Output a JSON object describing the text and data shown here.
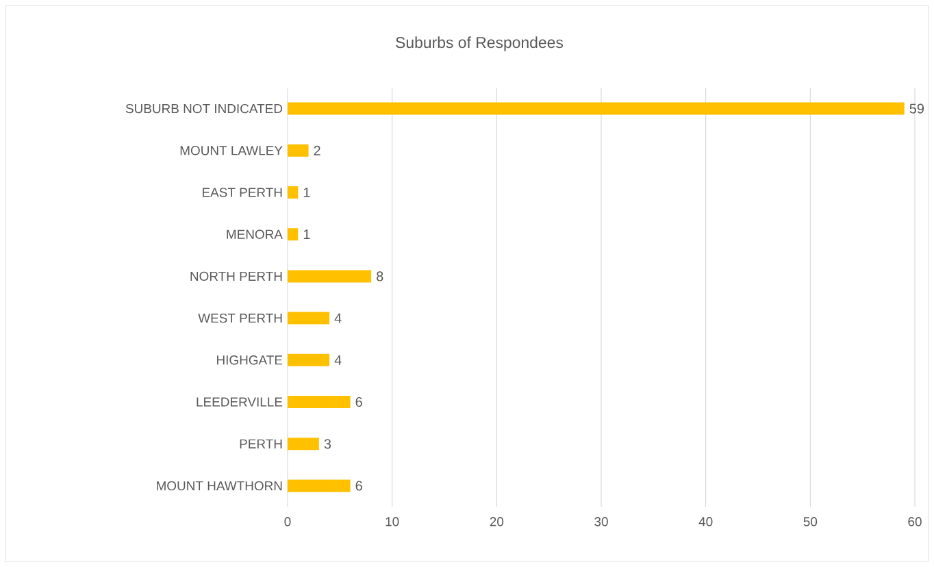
{
  "chart_data": {
    "type": "bar",
    "orientation": "horizontal",
    "title": "Suburbs of Respondees",
    "categories": [
      "SUBURB NOT INDICATED",
      "MOUNT LAWLEY",
      "EAST PERTH",
      "MENORA",
      "NORTH PERTH",
      "WEST PERTH",
      "HIGHGATE",
      "LEEDERVILLE",
      "PERTH",
      "MOUNT HAWTHORN"
    ],
    "values": [
      59,
      2,
      1,
      1,
      8,
      4,
      4,
      6,
      3,
      6
    ],
    "color": "#ffc000",
    "xlim": [
      0,
      60
    ],
    "xticks": [
      0,
      10,
      20,
      30,
      40,
      50,
      60
    ],
    "grid": "x",
    "data_labels": true
  }
}
